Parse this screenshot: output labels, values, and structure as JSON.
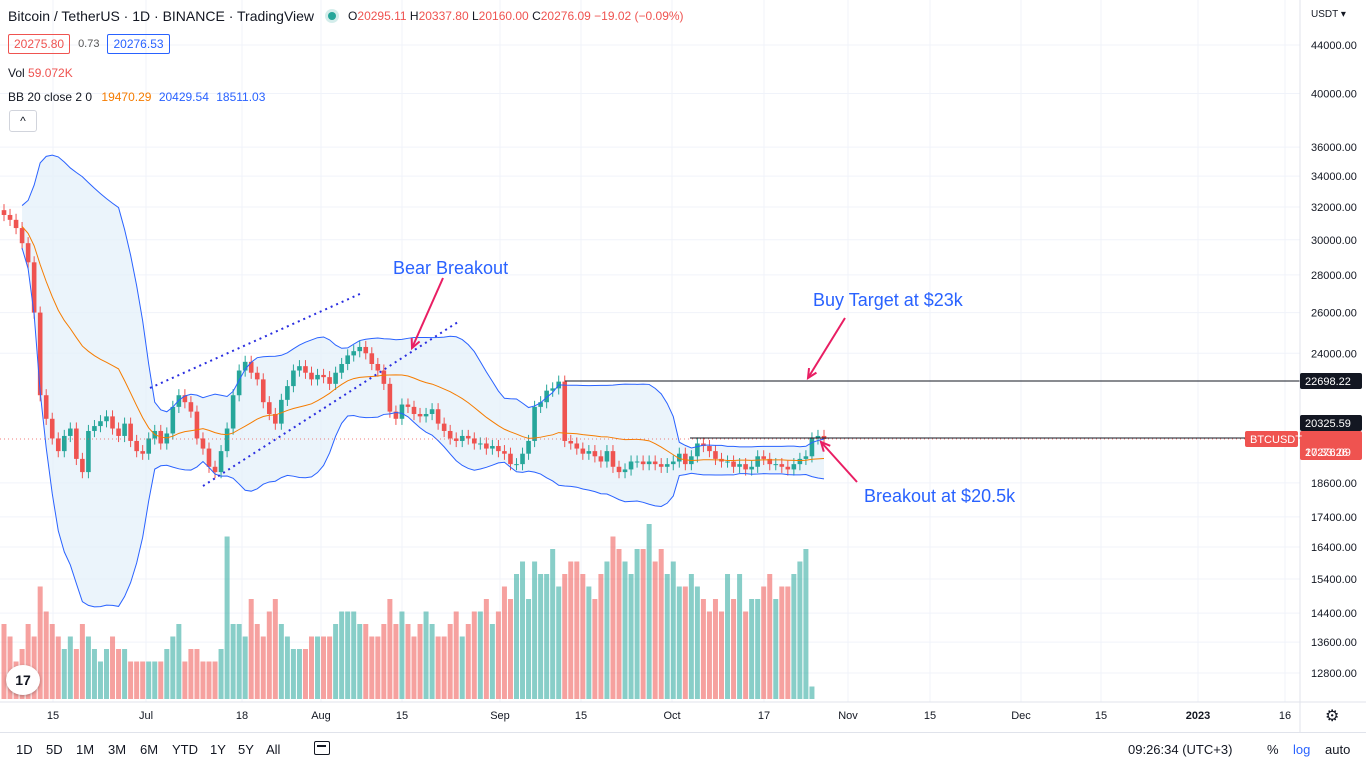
{
  "header": {
    "symbol": "Bitcoin / TetherUS · 1D · BINANCE · TradingView",
    "ohlc": {
      "o_label": "O",
      "o": "20295.11",
      "h_label": "H",
      "h": "20337.80",
      "l_label": "L",
      "l": "20160.00",
      "c_label": "C",
      "c": "20276.09",
      "chg": "−19.02 (−0.09%)"
    },
    "sell_price": "20275.80",
    "spread": "0.73",
    "buy_price": "20276.53",
    "vol_label": "Vol",
    "vol_value": "59.072K",
    "bb_label": "BB 20 close 2 0",
    "bb_basis": "19470.29",
    "bb_upper": "20429.54",
    "bb_lower": "18511.03",
    "collapse_icon": "^"
  },
  "axis": {
    "currency": "USDT",
    "ticks": [
      "44000.00",
      "40000.00",
      "36000.00",
      "34000.00",
      "32000.00",
      "30000.00",
      "28000.00",
      "26000.00",
      "24000.00",
      "20325.59",
      "18600.00",
      "17400.00",
      "16400.00",
      "15400.00",
      "14400.00",
      "13600.00",
      "12800.00"
    ],
    "xticks": [
      "15",
      "Jul",
      "18",
      "Aug",
      "15",
      "Sep",
      "15",
      "Oct",
      "17",
      "Nov",
      "15",
      "Dec",
      "15",
      "2023",
      "16"
    ]
  },
  "price_tags": {
    "level_22698": "22698.22",
    "level_20325": "20325.59",
    "symbol_tag": "BTCUSDT",
    "last_price": "20276.09",
    "countdown": "17:33:26"
  },
  "annotations": {
    "bear": "Bear Breakout",
    "buy_target": "Buy Target at $23k",
    "breakout": "Breakout at $20.5k"
  },
  "bottom": {
    "timeframes": [
      "1D",
      "5D",
      "1M",
      "3M",
      "6M",
      "YTD",
      "1Y",
      "5Y",
      "All"
    ],
    "time": "09:26:34 (UTC+3)",
    "pct": "%",
    "log": "log",
    "auto": "auto"
  },
  "colors": {
    "up": "#26a69a",
    "down": "#ef5350",
    "bb": "#2962ff",
    "basis": "#f57c00",
    "bbfill": "#e3effa"
  },
  "chart_data": {
    "type": "candlestick",
    "title": "Bitcoin / TetherUS · 1D · BINANCE",
    "ylim": [
      12400,
      46000
    ],
    "y_scale": "log",
    "candles_close": [
      31500,
      31200,
      30700,
      29800,
      28700,
      26000,
      22100,
      21100,
      20300,
      19800,
      20400,
      20700,
      19500,
      19000,
      20600,
      20800,
      21000,
      21200,
      20700,
      20400,
      20900,
      20200,
      19800,
      19700,
      20300,
      20600,
      20100,
      20500,
      21600,
      22100,
      21800,
      21400,
      20300,
      19900,
      19200,
      19000,
      19800,
      20700,
      22100,
      23200,
      23600,
      23100,
      22800,
      21800,
      21300,
      20900,
      21900,
      22500,
      23200,
      23400,
      23100,
      22800,
      23000,
      22900,
      22600,
      23100,
      23500,
      23900,
      24100,
      24300,
      24000,
      23500,
      23200,
      22600,
      21400,
      21100,
      21700,
      21600,
      21300,
      21200,
      21300,
      21500,
      20900,
      20600,
      20300,
      20200,
      20400,
      20300,
      20100,
      20100,
      19900,
      20000,
      19800,
      19700,
      19300,
      19300,
      19700,
      20200,
      21600,
      21800,
      22300,
      22400,
      22700,
      20200,
      20100,
      19900,
      19700,
      19800,
      19600,
      19400,
      19800,
      19200,
      19000,
      19100,
      19400,
      19400,
      19300,
      19400,
      19300,
      19200,
      19300,
      19400,
      19700,
      19300,
      19600,
      20100,
      20000,
      19800,
      19500,
      19400,
      19400,
      19200,
      19300,
      19100,
      19200,
      19600,
      19500,
      19300,
      19300,
      19200,
      19100,
      19300,
      19500,
      19600,
      20300,
      20400,
      20276
    ],
    "volume_unit": "relative",
    "volume": [
      6,
      5,
      3,
      4,
      6,
      5,
      9,
      7,
      6,
      5,
      4,
      5,
      4,
      6,
      5,
      4,
      3,
      4,
      5,
      4,
      4,
      3,
      3,
      3,
      3,
      3,
      3,
      4,
      5,
      6,
      3,
      4,
      4,
      3,
      3,
      3,
      4,
      13,
      6,
      6,
      5,
      8,
      6,
      5,
      7,
      8,
      6,
      5,
      4,
      4,
      4,
      5,
      5,
      5,
      5,
      6,
      7,
      7,
      7,
      6,
      6,
      5,
      5,
      6,
      8,
      6,
      7,
      6,
      5,
      6,
      7,
      6,
      5,
      5,
      6,
      7,
      5,
      6,
      7,
      7,
      8,
      6,
      7,
      9,
      8,
      10,
      11,
      8,
      11,
      10,
      10,
      12,
      9,
      10,
      11,
      11,
      10,
      9,
      8,
      10,
      11,
      13,
      12,
      11,
      10,
      12,
      12,
      14,
      11,
      12,
      10,
      11,
      9,
      9,
      10,
      9,
      8,
      7,
      8,
      7,
      10,
      8,
      10,
      7,
      8,
      8,
      9,
      10,
      8,
      9,
      9,
      10,
      11,
      12,
      1
    ]
  }
}
